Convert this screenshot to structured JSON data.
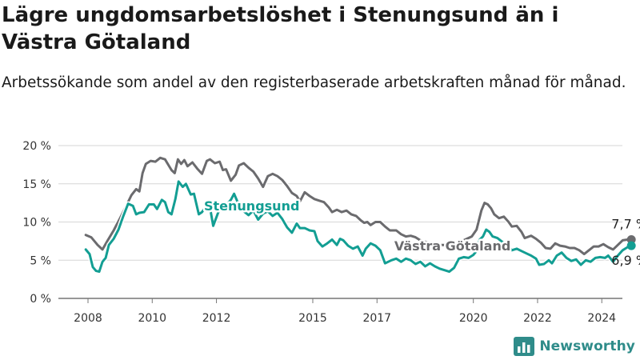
{
  "title": "Lägre ungdomsarbetslöshet i Stenungsund än i Västra Götaland",
  "subtitle": "Arbetssökande som andel av den registerbaserade arbetskraften månad för månad.",
  "brand": {
    "name": "Newsworthy",
    "icon": "bar-chart-logo-icon",
    "color": "#2f8c8a"
  },
  "chart_data": {
    "type": "line",
    "xlim": [
      2008.0,
      2025.2
    ],
    "ylim": [
      0,
      20
    ],
    "y_unit": "%",
    "x_ticks": [
      "2008",
      "2010",
      "2012",
      "2015",
      "2017",
      "2020",
      "2022",
      "2024"
    ],
    "y_ticks": [
      "0 %",
      "5 %",
      "10 %",
      "15 %",
      "20 %"
    ],
    "grid": true,
    "legend": "inline labels",
    "series": [
      {
        "name": "Västra Götaland",
        "color": "#6b6b6e",
        "end_label": "7,7 %",
        "points": [
          [
            2007.93,
            8.3
          ],
          [
            2008.1,
            8.0
          ],
          [
            2008.3,
            7.0
          ],
          [
            2008.45,
            6.4
          ],
          [
            2008.6,
            7.5
          ],
          [
            2008.8,
            8.9
          ],
          [
            2009.0,
            10.5
          ],
          [
            2009.2,
            12.2
          ],
          [
            2009.35,
            13.5
          ],
          [
            2009.5,
            14.3
          ],
          [
            2009.6,
            14.0
          ],
          [
            2009.7,
            16.4
          ],
          [
            2009.8,
            17.6
          ],
          [
            2009.95,
            18.0
          ],
          [
            2010.1,
            17.9
          ],
          [
            2010.25,
            18.4
          ],
          [
            2010.4,
            18.2
          ],
          [
            2010.5,
            17.5
          ],
          [
            2010.6,
            16.8
          ],
          [
            2010.7,
            16.4
          ],
          [
            2010.8,
            18.2
          ],
          [
            2010.9,
            17.6
          ],
          [
            2011.0,
            18.1
          ],
          [
            2011.1,
            17.3
          ],
          [
            2011.25,
            17.8
          ],
          [
            2011.4,
            17.0
          ],
          [
            2011.55,
            16.3
          ],
          [
            2011.7,
            18.0
          ],
          [
            2011.8,
            18.2
          ],
          [
            2011.95,
            17.7
          ],
          [
            2012.1,
            17.9
          ],
          [
            2012.2,
            16.8
          ],
          [
            2012.3,
            16.9
          ],
          [
            2012.45,
            15.4
          ],
          [
            2012.6,
            16.2
          ],
          [
            2012.7,
            17.4
          ],
          [
            2012.85,
            17.7
          ],
          [
            2013.0,
            17.1
          ],
          [
            2013.15,
            16.6
          ],
          [
            2013.3,
            15.7
          ],
          [
            2013.45,
            14.6
          ],
          [
            2013.6,
            16.0
          ],
          [
            2013.75,
            16.3
          ],
          [
            2013.9,
            16.0
          ],
          [
            2014.05,
            15.5
          ],
          [
            2014.2,
            14.7
          ],
          [
            2014.35,
            13.8
          ],
          [
            2014.5,
            13.4
          ],
          [
            2014.6,
            12.7
          ],
          [
            2014.75,
            13.9
          ],
          [
            2014.9,
            13.4
          ],
          [
            2015.05,
            13.0
          ],
          [
            2015.2,
            12.8
          ],
          [
            2015.35,
            12.6
          ],
          [
            2015.5,
            11.9
          ],
          [
            2015.6,
            11.3
          ],
          [
            2015.75,
            11.6
          ],
          [
            2015.9,
            11.3
          ],
          [
            2016.05,
            11.5
          ],
          [
            2016.2,
            11.0
          ],
          [
            2016.35,
            10.8
          ],
          [
            2016.5,
            10.2
          ],
          [
            2016.6,
            9.9
          ],
          [
            2016.7,
            10.0
          ],
          [
            2016.8,
            9.6
          ],
          [
            2016.95,
            10.0
          ],
          [
            2017.1,
            10.0
          ],
          [
            2017.25,
            9.4
          ],
          [
            2017.4,
            8.9
          ],
          [
            2017.6,
            8.9
          ],
          [
            2017.75,
            8.4
          ],
          [
            2017.9,
            8.1
          ],
          [
            2018.05,
            8.2
          ],
          [
            2018.2,
            8.0
          ],
          [
            2018.35,
            7.6
          ],
          [
            2018.6,
            7.3
          ],
          [
            2018.85,
            7.0
          ],
          [
            2019.1,
            7.0
          ],
          [
            2019.4,
            7.2
          ],
          [
            2019.7,
            7.6
          ],
          [
            2019.95,
            8.1
          ],
          [
            2020.1,
            9.0
          ],
          [
            2020.25,
            11.5
          ],
          [
            2020.35,
            12.5
          ],
          [
            2020.45,
            12.3
          ],
          [
            2020.55,
            11.8
          ],
          [
            2020.65,
            11.0
          ],
          [
            2020.8,
            10.5
          ],
          [
            2020.95,
            10.7
          ],
          [
            2021.1,
            10.0
          ],
          [
            2021.2,
            9.4
          ],
          [
            2021.35,
            9.5
          ],
          [
            2021.5,
            8.7
          ],
          [
            2021.6,
            7.9
          ],
          [
            2021.8,
            8.2
          ],
          [
            2021.95,
            7.8
          ],
          [
            2022.1,
            7.3
          ],
          [
            2022.25,
            6.6
          ],
          [
            2022.4,
            6.5
          ],
          [
            2022.55,
            7.2
          ],
          [
            2022.7,
            6.9
          ],
          [
            2022.85,
            6.8
          ],
          [
            2023.0,
            6.6
          ],
          [
            2023.15,
            6.6
          ],
          [
            2023.3,
            6.3
          ],
          [
            2023.45,
            5.8
          ],
          [
            2023.6,
            6.3
          ],
          [
            2023.75,
            6.8
          ],
          [
            2023.9,
            6.8
          ],
          [
            2024.05,
            7.1
          ],
          [
            2024.2,
            6.7
          ],
          [
            2024.35,
            6.4
          ],
          [
            2024.5,
            7.0
          ],
          [
            2024.65,
            7.6
          ],
          [
            2024.8,
            7.7
          ],
          [
            2024.92,
            7.7
          ]
        ]
      },
      {
        "name": "Stenungsund",
        "color": "#139e93",
        "end_label": "6,9 %",
        "points": [
          [
            2007.93,
            6.4
          ],
          [
            2008.05,
            5.8
          ],
          [
            2008.15,
            4.1
          ],
          [
            2008.25,
            3.6
          ],
          [
            2008.35,
            3.5
          ],
          [
            2008.45,
            4.8
          ],
          [
            2008.55,
            5.3
          ],
          [
            2008.65,
            7.0
          ],
          [
            2008.8,
            7.8
          ],
          [
            2008.95,
            9.0
          ],
          [
            2009.1,
            10.8
          ],
          [
            2009.25,
            12.4
          ],
          [
            2009.4,
            12.1
          ],
          [
            2009.5,
            11.0
          ],
          [
            2009.6,
            11.2
          ],
          [
            2009.75,
            11.3
          ],
          [
            2009.9,
            12.3
          ],
          [
            2010.05,
            12.3
          ],
          [
            2010.15,
            11.7
          ],
          [
            2010.3,
            12.9
          ],
          [
            2010.4,
            12.6
          ],
          [
            2010.5,
            11.3
          ],
          [
            2010.6,
            11.0
          ],
          [
            2010.72,
            13.0
          ],
          [
            2010.82,
            15.3
          ],
          [
            2010.95,
            14.6
          ],
          [
            2011.05,
            15.0
          ],
          [
            2011.2,
            13.6
          ],
          [
            2011.3,
            13.7
          ],
          [
            2011.45,
            11.0
          ],
          [
            2011.55,
            11.3
          ],
          [
            2011.7,
            12.2
          ],
          [
            2011.8,
            11.9
          ],
          [
            2011.9,
            9.5
          ],
          [
            2012.05,
            11.2
          ],
          [
            2012.15,
            12.1
          ],
          [
            2012.3,
            12.2
          ],
          [
            2012.45,
            12.9
          ],
          [
            2012.55,
            13.7
          ],
          [
            2012.7,
            12.2
          ],
          [
            2012.85,
            11.4
          ],
          [
            2013.0,
            10.9
          ],
          [
            2013.15,
            11.5
          ],
          [
            2013.3,
            10.3
          ],
          [
            2013.45,
            11.1
          ],
          [
            2013.6,
            11.4
          ],
          [
            2013.75,
            10.8
          ],
          [
            2013.9,
            11.2
          ],
          [
            2014.05,
            10.4
          ],
          [
            2014.2,
            9.3
          ],
          [
            2014.35,
            8.6
          ],
          [
            2014.5,
            9.8
          ],
          [
            2014.6,
            9.2
          ],
          [
            2014.75,
            9.2
          ],
          [
            2014.9,
            8.9
          ],
          [
            2015.05,
            8.8
          ],
          [
            2015.15,
            7.5
          ],
          [
            2015.3,
            6.8
          ],
          [
            2015.45,
            7.2
          ],
          [
            2015.6,
            7.7
          ],
          [
            2015.75,
            7.0
          ],
          [
            2015.85,
            7.8
          ],
          [
            2015.95,
            7.6
          ],
          [
            2016.1,
            6.9
          ],
          [
            2016.25,
            6.5
          ],
          [
            2016.4,
            6.8
          ],
          [
            2016.55,
            5.6
          ],
          [
            2016.65,
            6.5
          ],
          [
            2016.8,
            7.2
          ],
          [
            2016.95,
            6.9
          ],
          [
            2017.1,
            6.3
          ],
          [
            2017.25,
            4.6
          ],
          [
            2017.45,
            5.0
          ],
          [
            2017.6,
            5.2
          ],
          [
            2017.75,
            4.8
          ],
          [
            2017.9,
            5.2
          ],
          [
            2018.05,
            5.0
          ],
          [
            2018.2,
            4.5
          ],
          [
            2018.35,
            4.8
          ],
          [
            2018.5,
            4.2
          ],
          [
            2018.65,
            4.6
          ],
          [
            2018.8,
            4.2
          ],
          [
            2018.95,
            3.9
          ],
          [
            2019.1,
            3.7
          ],
          [
            2019.25,
            3.5
          ],
          [
            2019.4,
            4.0
          ],
          [
            2019.55,
            5.2
          ],
          [
            2019.7,
            5.4
          ],
          [
            2019.85,
            5.3
          ],
          [
            2020.0,
            5.7
          ],
          [
            2020.1,
            6.2
          ],
          [
            2020.2,
            7.7
          ],
          [
            2020.3,
            8.1
          ],
          [
            2020.4,
            9.0
          ],
          [
            2020.5,
            8.7
          ],
          [
            2020.6,
            8.1
          ],
          [
            2020.75,
            7.9
          ],
          [
            2020.9,
            7.4
          ],
          [
            2021.05,
            7.0
          ],
          [
            2021.2,
            6.3
          ],
          [
            2021.35,
            6.5
          ],
          [
            2021.5,
            6.2
          ],
          [
            2021.65,
            5.9
          ],
          [
            2021.8,
            5.6
          ],
          [
            2021.95,
            5.2
          ],
          [
            2022.05,
            4.4
          ],
          [
            2022.2,
            4.5
          ],
          [
            2022.35,
            5.0
          ],
          [
            2022.45,
            4.6
          ],
          [
            2022.6,
            5.6
          ],
          [
            2022.75,
            6.0
          ],
          [
            2022.9,
            5.3
          ],
          [
            2023.05,
            4.9
          ],
          [
            2023.2,
            5.1
          ],
          [
            2023.35,
            4.4
          ],
          [
            2023.5,
            5.0
          ],
          [
            2023.65,
            4.8
          ],
          [
            2023.8,
            5.3
          ],
          [
            2023.95,
            5.4
          ],
          [
            2024.1,
            5.3
          ],
          [
            2024.2,
            5.6
          ],
          [
            2024.35,
            4.8
          ],
          [
            2024.5,
            5.6
          ],
          [
            2024.65,
            6.3
          ],
          [
            2024.8,
            6.7
          ],
          [
            2024.92,
            6.9
          ]
        ]
      }
    ]
  }
}
